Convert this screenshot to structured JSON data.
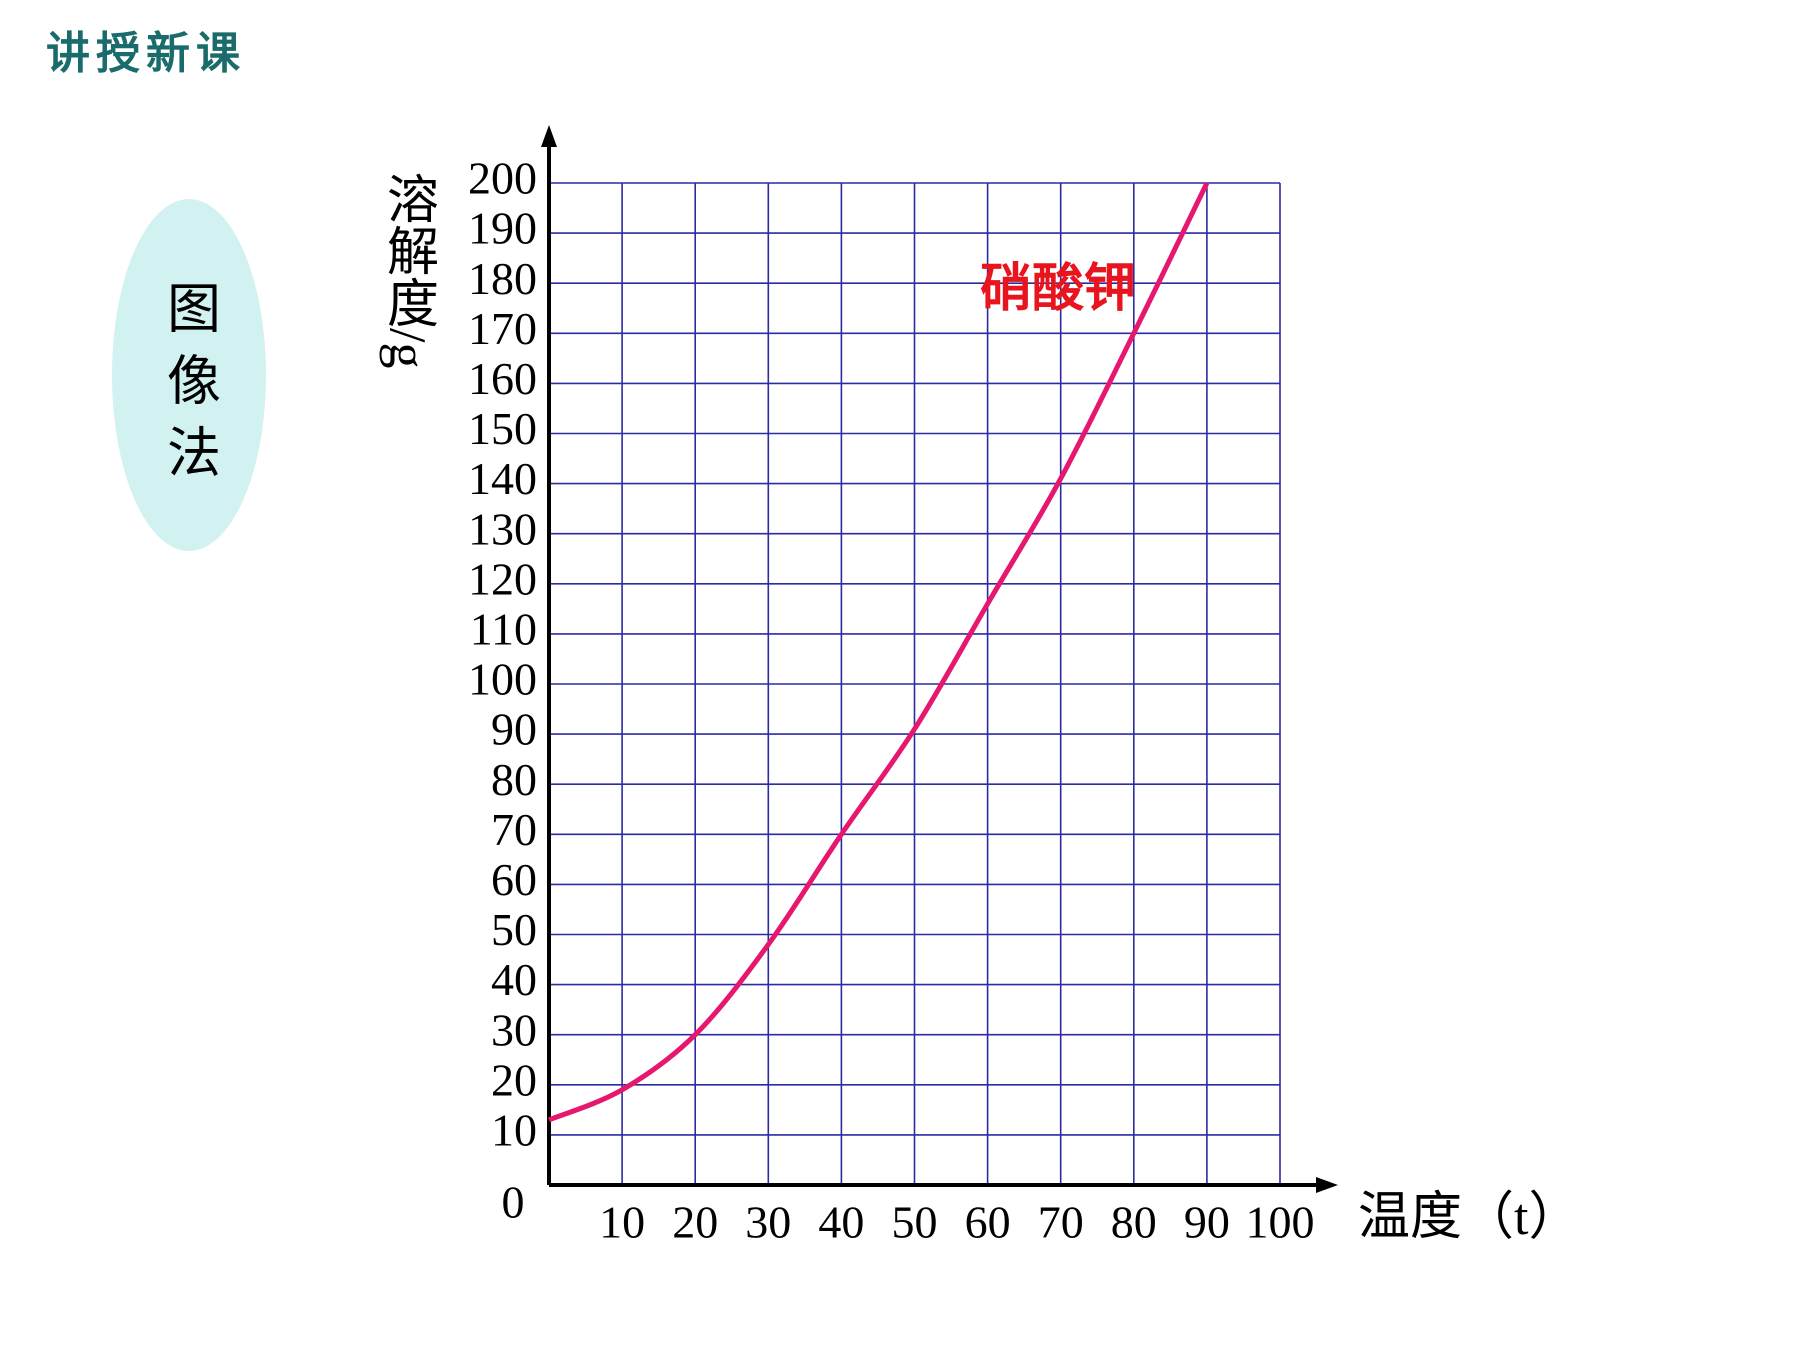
{
  "header": {
    "title": "讲授新课"
  },
  "sidebar": {
    "label": "图像法"
  },
  "chart_data": {
    "type": "line",
    "x_label": "温度（t）",
    "y_label": "溶解度/g",
    "origin_label": "0",
    "x": [
      0,
      10,
      20,
      30,
      40,
      50,
      60,
      70,
      80,
      90
    ],
    "series": [
      {
        "name": "硝酸钾",
        "color": "#e6176e",
        "values": [
          13,
          19,
          30,
          48,
          70,
          91,
          116,
          141,
          170,
          200
        ]
      }
    ],
    "xlim": [
      0,
      100
    ],
    "ylim": [
      0,
      200
    ],
    "xticks": [
      10,
      20,
      30,
      40,
      50,
      60,
      70,
      80,
      90,
      100
    ],
    "yticks": [
      10,
      20,
      30,
      40,
      50,
      60,
      70,
      80,
      90,
      100,
      110,
      120,
      130,
      140,
      150,
      160,
      170,
      180,
      190,
      200
    ],
    "grid": true,
    "grid_color": "#2b2ba3",
    "series_label_color": "#e8141e"
  }
}
